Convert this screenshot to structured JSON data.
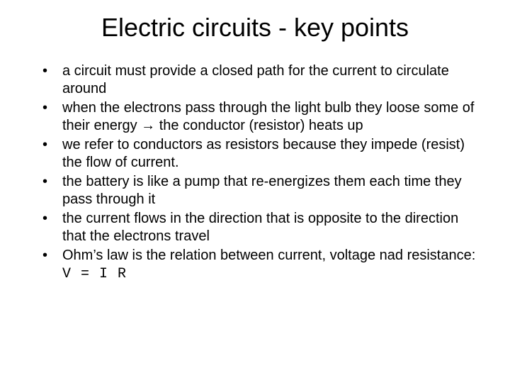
{
  "slide": {
    "title": "Electric circuits - key points",
    "title_fontsize": 36,
    "body_fontsize": 20,
    "text_color": "#000000",
    "background_color": "#ffffff",
    "bullets": [
      {
        "text": "a circuit must provide a closed path for the current to circulate around"
      },
      {
        "before": "when the electrons pass through the light bulb they loose some of their energy ",
        "arrow": "→",
        "after": " the conductor (resistor) heats up"
      },
      {
        "text": "we refer to conductors as resistors because they impede (resist) the flow of current."
      },
      {
        "text": "the battery is like a pump that re-energizes them each time they pass through it"
      },
      {
        "text": "the current flows in the direction that is opposite to the direction that the electrons travel"
      },
      {
        "before": "Ohm’s law is the relation between current, voltage nad resistance: ",
        "formula": "V = I R"
      }
    ]
  }
}
